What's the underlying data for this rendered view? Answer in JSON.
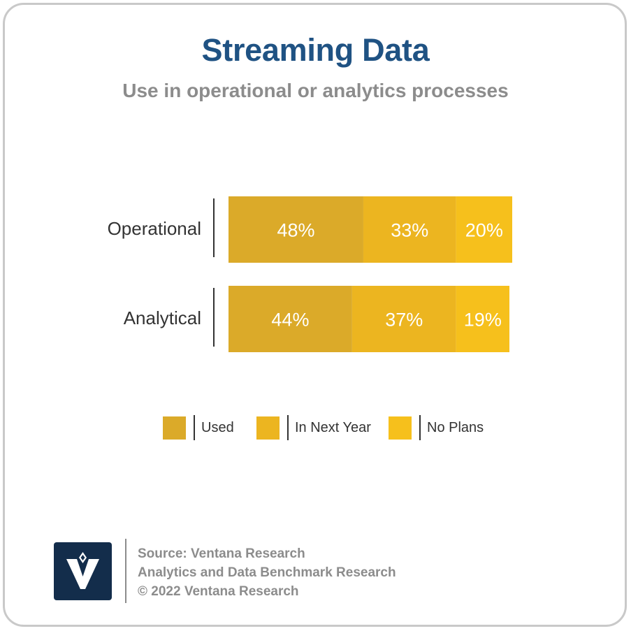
{
  "header": {
    "title": "Streaming Data",
    "subtitle": "Use in operational or analytics processes"
  },
  "colors": {
    "title": "#1f5283",
    "subtitle": "#8c8c8c",
    "used": "#dbaa29",
    "in_next_year": "#ecb520",
    "no_plans": "#f6c01c",
    "logo_bg": "#132d4b"
  },
  "chart_data": {
    "type": "bar",
    "orientation": "horizontal",
    "stacked": true,
    "categories": [
      "Operational",
      "Analytical"
    ],
    "series": [
      {
        "name": "Used",
        "values": [
          48,
          44
        ],
        "labels": [
          "48%",
          "44%"
        ],
        "color": "#dbaa29"
      },
      {
        "name": "In Next Year",
        "values": [
          33,
          37
        ],
        "labels": [
          "33%",
          "37%"
        ],
        "color": "#ecb520"
      },
      {
        "name": "No Plans",
        "values": [
          20,
          19
        ],
        "labels": [
          "20%",
          "19%"
        ],
        "color": "#f6c01c"
      }
    ],
    "xlim": [
      0,
      100
    ],
    "grid": false,
    "legend": "bottom"
  },
  "legend": [
    {
      "label": "Used",
      "color": "#dbaa29"
    },
    {
      "label": "In Next Year",
      "color": "#ecb520"
    },
    {
      "label": "No Plans",
      "color": "#f6c01c"
    }
  ],
  "footer": {
    "logo_icon": "ventana-v-logo",
    "source": "Source: Ventana Research",
    "study": "Analytics and Data Benchmark Research",
    "copyright": "© 2022 Ventana Research"
  }
}
